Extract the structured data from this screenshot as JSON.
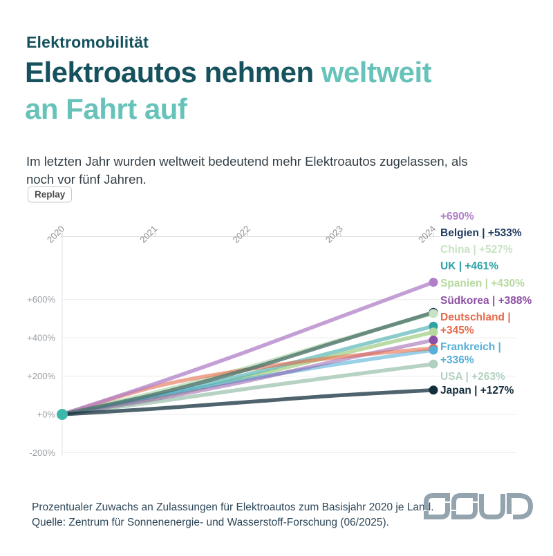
{
  "header": {
    "kicker": "Elektromobilität",
    "title": {
      "dark": "Elektroautos nehmen",
      "accent": "weltweit",
      "accent_line2": "an Fahrt auf"
    },
    "subtitle": "Im letzten Jahr wurden weltweit bedeutend mehr Elektroautos zugelassen, als noch vor fünf Jahren.",
    "colors": {
      "dark_teal": "#15525e",
      "accent_teal": "#67c3ba",
      "body_text": "#323e46"
    }
  },
  "controls": {
    "replay_label": "Replay"
  },
  "chart_data": {
    "type": "line",
    "title": "",
    "xlabel": "",
    "ylabel": "",
    "x": [
      2020,
      2021,
      2022,
      2023,
      2024
    ],
    "y_ticks": [
      "+600%",
      "+400%",
      "+200%",
      "+0%",
      "-200%"
    ],
    "y_tick_values": [
      600,
      400,
      200,
      0,
      -200
    ],
    "ylim": [
      -260,
      930
    ],
    "grid": true,
    "legend_position": "right",
    "start_dot_color": "#3cb8ab",
    "axis_text_color": "#9aa0a6",
    "grid_color": "#ebebeb",
    "series": [
      {
        "id": "line-690",
        "label": "+690%",
        "legend_lines": [
          "+690%"
        ],
        "color": "#b07fc7",
        "line_opacity": 0.75,
        "values": [
          0,
          160,
          330,
          510,
          690
        ],
        "end_value": 690
      },
      {
        "id": "belgien",
        "label": "Belgien | +533%",
        "legend_lines": [
          "Belgien | +533%"
        ],
        "color": "#1e3a5f",
        "line_color": "#4e746c",
        "line_opacity": 0.8,
        "values": [
          0,
          105,
          235,
          385,
          533
        ],
        "end_value": 533
      },
      {
        "id": "china",
        "label": "China | +527%",
        "legend_lines": [
          "China | +527%"
        ],
        "color": "#c8e2c3",
        "line_opacity": 0.95,
        "values": [
          0,
          115,
          245,
          390,
          527
        ],
        "end_value": 527
      },
      {
        "id": "uk",
        "label": "UK | +461%",
        "legend_lines": [
          "UK | +461%"
        ],
        "color": "#2fa3a3",
        "line_opacity": 0.55,
        "values": [
          0,
          95,
          210,
          335,
          461
        ],
        "end_value": 461
      },
      {
        "id": "spanien",
        "label": "Spanien | +430%",
        "legend_lines": [
          "Spanien | +430%"
        ],
        "color": "#b6d9a0",
        "line_opacity": 0.95,
        "values": [
          0,
          85,
          195,
          315,
          430
        ],
        "end_value": 430
      },
      {
        "id": "suedkorea",
        "label": "Südkorea | +388%",
        "legend_lines": [
          "Südkorea | +388%"
        ],
        "color": "#8d4fa5",
        "line_opacity": 0.5,
        "values": [
          0,
          80,
          175,
          285,
          388
        ],
        "end_value": 388
      },
      {
        "id": "deutschland",
        "label": "Deutschland | +345%",
        "legend_lines": [
          "Deutschland |",
          "+345%"
        ],
        "color": "#e56a4b",
        "line_opacity": 0.6,
        "values": [
          0,
          145,
          235,
          300,
          345
        ],
        "end_value": 345
      },
      {
        "id": "frankreich",
        "label": "Frankreich | +336%",
        "legend_lines": [
          "Frankreich |",
          "+336%"
        ],
        "color": "#56afd8",
        "line_opacity": 0.6,
        "values": [
          0,
          95,
          185,
          265,
          336
        ],
        "end_value": 336
      },
      {
        "id": "usa",
        "label": "USA | +263%",
        "legend_lines": [
          "USA | +263%"
        ],
        "color": "#b2d0c0",
        "line_opacity": 0.95,
        "values": [
          0,
          65,
          135,
          200,
          263
        ],
        "end_value": 263
      },
      {
        "id": "japan",
        "label": "Japan | +127%",
        "legend_lines": [
          "Japan | +127%"
        ],
        "color": "#132f3c",
        "line_opacity": 0.75,
        "values": [
          0,
          30,
          65,
          100,
          127
        ],
        "end_value": 127
      }
    ]
  },
  "footer": {
    "line1": "Prozentualer Zuwachs an Zulassungen für Elektroautos zum Basisjahr 2020 je Land.",
    "line2": "Quelle: Zentrum für Sonnenenergie- und Wasserstoff-Forschung (06/2025)."
  },
  "logo": {
    "color": "#94a4ae"
  }
}
